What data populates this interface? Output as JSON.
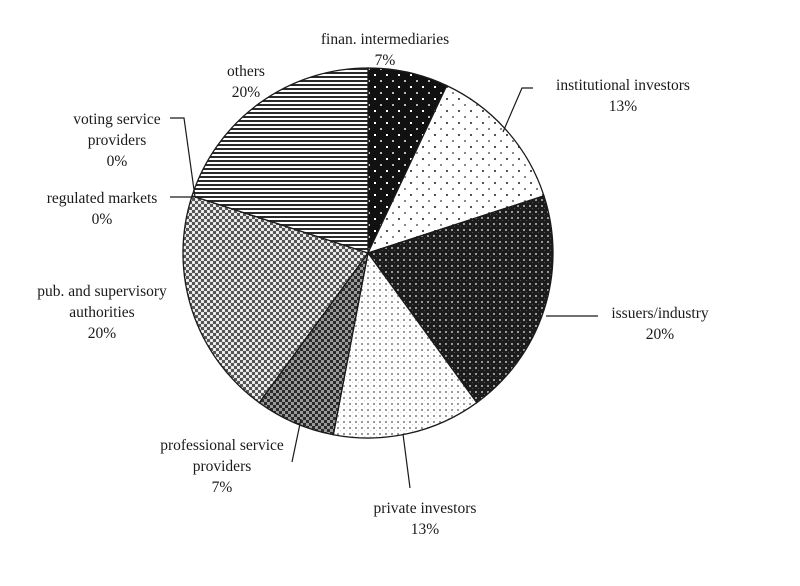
{
  "chart_data": {
    "type": "pie",
    "title": "",
    "legend": "none",
    "slices": [
      {
        "label_lines": [
          "finan. intermediaries"
        ],
        "value": 7,
        "value_label": "7%",
        "pattern": "dark-dots"
      },
      {
        "label_lines": [
          "institutional investors"
        ],
        "value": 13,
        "value_label": "13%",
        "pattern": "light-dots"
      },
      {
        "label_lines": [
          "issuers/industry"
        ],
        "value": 20,
        "value_label": "20%",
        "pattern": "dark-grid"
      },
      {
        "label_lines": [
          "private investors"
        ],
        "value": 13,
        "value_label": "13%",
        "pattern": "light-grid"
      },
      {
        "label_lines": [
          "professional service",
          "providers"
        ],
        "value": 7,
        "value_label": "7%",
        "pattern": "dark-checker"
      },
      {
        "label_lines": [
          "pub. and supervisory",
          "authorities"
        ],
        "value": 20,
        "value_label": "20%",
        "pattern": "checker"
      },
      {
        "label_lines": [
          "regulated markets"
        ],
        "value": 0,
        "value_label": "0%",
        "pattern": "none"
      },
      {
        "label_lines": [
          "voting service",
          "providers"
        ],
        "value": 0,
        "value_label": "0%",
        "pattern": "none"
      },
      {
        "label_lines": [
          "others"
        ],
        "value": 20,
        "value_label": "20%",
        "pattern": "horizontal-lines"
      }
    ]
  }
}
